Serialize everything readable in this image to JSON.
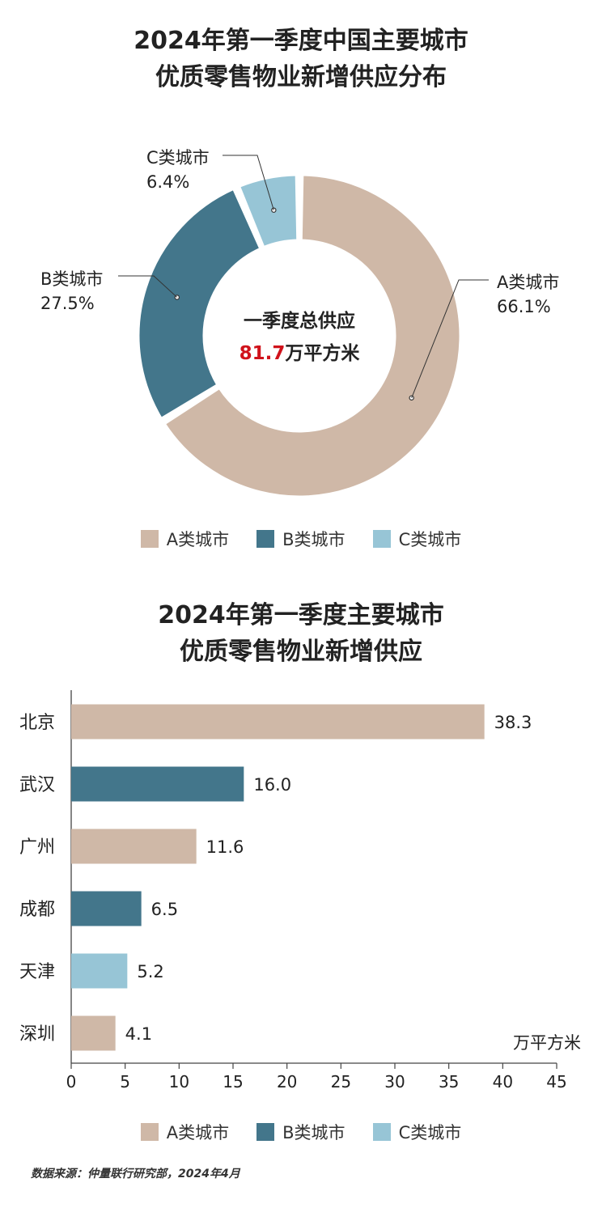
{
  "donut": {
    "title_line1": "2024年第一季度中国主要城市",
    "title_line2": "优质零售物业新增供应分布",
    "center_label": "一季度总供应",
    "center_value": "81.7",
    "center_unit": "万平方米",
    "center_value_color": "#d0121b"
  },
  "bars": {
    "title_line1": "2024年第一季度主要城市",
    "title_line2": "优质零售物业新增供应",
    "unit_label": "万平方米"
  },
  "legend": [
    {
      "label": "A类城市",
      "color": "#cfb8a7"
    },
    {
      "label": "B类城市",
      "color": "#43768b"
    },
    {
      "label": "C类城市",
      "color": "#97c5d6"
    }
  ],
  "source": "数据来源：仲量联行研究部，2024年4月",
  "chart_data": [
    {
      "type": "pie",
      "categories": [
        "A类城市",
        "B类城市",
        "C类城市"
      ],
      "values": [
        66.1,
        27.5,
        6.4
      ],
      "value_labels": [
        "66.1%",
        "27.5%",
        "6.4%"
      ],
      "colors": [
        "#cfb8a7",
        "#43768b",
        "#97c5d6"
      ],
      "title": "2024年第一季度中国主要城市优质零售物业新增供应分布",
      "legend": "bottom"
    },
    {
      "type": "bar",
      "orientation": "horizontal",
      "categories": [
        "北京",
        "武汉",
        "广州",
        "成都",
        "天津",
        "深圳"
      ],
      "values": [
        38.3,
        16.0,
        11.6,
        6.5,
        5.2,
        4.1
      ],
      "value_labels": [
        "38.3",
        "16.0",
        "11.6",
        "6.5",
        "5.2",
        "4.1"
      ],
      "city_class": [
        "A类城市",
        "B类城市",
        "A类城市",
        "B类城市",
        "C类城市",
        "A类城市"
      ],
      "xlim": [
        0,
        45
      ],
      "xticks": [
        0,
        5,
        10,
        15,
        20,
        25,
        30,
        35,
        40,
        45
      ],
      "xlabel": "万平方米",
      "title": "2024年第一季度主要城市优质零售物业新增供应",
      "grid": false,
      "legend": "bottom"
    }
  ]
}
